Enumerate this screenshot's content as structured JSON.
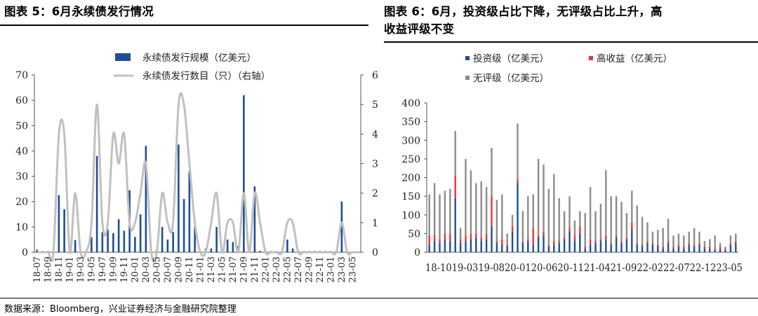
{
  "left_title": "图表 5：6月永续债发行情况",
  "right_title_line1": "图表 6：6月，投资级占比下降，无评级占比上升，高",
  "right_title_line2": "收益评级不变",
  "source": "数据来源：Bloomberg，兴业证券经济与金融研究院整理",
  "colors": {
    "blue": "#1f4e96",
    "red": "#e8343a",
    "gray": "#8c8c8c",
    "line_gray": "#c0c0c0"
  },
  "chart_data": [
    {
      "type": "bar+line",
      "legend": [
        "永续债发行规模（亿美元）",
        "永续债发行数目（只）（右轴）"
      ],
      "legend_placement": "top-center",
      "ylim_left": [
        0,
        70
      ],
      "ylim_right": [
        0,
        6
      ],
      "yticks_left": [
        "0",
        "10",
        "20",
        "30",
        "40",
        "50",
        "60",
        "70"
      ],
      "yticks_right": [
        "0",
        "1",
        "2",
        "3",
        "4",
        "5",
        "6"
      ],
      "x_tick_labels": [
        "18-07",
        "18-09",
        "18-11",
        "19-01",
        "19-03",
        "19-05",
        "19-07",
        "19-09",
        "19-11",
        "20-01",
        "20-03",
        "20-05",
        "20-07",
        "20-09",
        "20-11",
        "21-01",
        "21-03",
        "21-05",
        "21-07",
        "21-09",
        "21-11",
        "22-01",
        "22-03",
        "22-05",
        "22-07",
        "22-09",
        "22-11",
        "23-01",
        "23-03",
        "23-05"
      ],
      "months": [
        "18-07",
        "18-08",
        "18-09",
        "18-10",
        "18-11",
        "18-12",
        "19-01",
        "19-02",
        "19-03",
        "19-04",
        "19-05",
        "19-06",
        "19-07",
        "19-08",
        "19-09",
        "19-10",
        "19-11",
        "19-12",
        "20-01",
        "20-02",
        "20-03",
        "20-04",
        "20-05",
        "20-06",
        "20-07",
        "20-08",
        "20-09",
        "20-10",
        "20-11",
        "20-12",
        "21-01",
        "21-02",
        "21-03",
        "21-04",
        "21-05",
        "21-06",
        "21-07",
        "21-08",
        "21-09",
        "21-10",
        "21-11",
        "21-12",
        "22-01",
        "22-02",
        "22-03",
        "22-04",
        "22-05",
        "22-06",
        "22-07",
        "22-08",
        "22-09",
        "22-10",
        "22-11",
        "22-12",
        "23-01",
        "23-02",
        "23-03",
        "23-04",
        "23-05",
        "23-06"
      ],
      "series": [
        {
          "name": "永续债发行规模（亿美元）",
          "axis": "left",
          "values": [
            1,
            0.5,
            0.5,
            0.5,
            22.5,
            17,
            0.5,
            4.8,
            0.3,
            0.5,
            6,
            38,
            8,
            9,
            7.5,
            13,
            8.5,
            24.5,
            6,
            15,
            42,
            0.5,
            1,
            10,
            5,
            8,
            42.5,
            21,
            32,
            10,
            0.5,
            1.5,
            1.5,
            10,
            0.5,
            5,
            4,
            2.5,
            62,
            0.5,
            26,
            0.5,
            0.5,
            0.5,
            0.5,
            0.5,
            5,
            1.5,
            0.5,
            0.5,
            0.5,
            0.5,
            0.5,
            0.5,
            0.5,
            0.5,
            20,
            0.5,
            0,
            0
          ]
        },
        {
          "name": "永续债发行数目（只）（右轴）",
          "axis": "right",
          "values": [
            0,
            0,
            0,
            0,
            4,
            4,
            0,
            2,
            0,
            0,
            1,
            5,
            1,
            1,
            4,
            3,
            4,
            1,
            1,
            2,
            3,
            0,
            0,
            2,
            1,
            1,
            5,
            5,
            3,
            1,
            0,
            0,
            1,
            2,
            0,
            1,
            1,
            0,
            2,
            0,
            2,
            1,
            0,
            0,
            0,
            0,
            1,
            1,
            0,
            0,
            0,
            0,
            0,
            0,
            0,
            0,
            1,
            0,
            0,
            0
          ]
        }
      ]
    },
    {
      "type": "stacked-bar",
      "legend": [
        "投资级（亿美元）",
        "高收益（亿美元）",
        "无评级（亿美元）"
      ],
      "legend_placement": "top",
      "ylim": [
        0,
        400
      ],
      "yticks": [
        "0",
        "50",
        "100",
        "150",
        "200",
        "250",
        "300",
        "350",
        "400"
      ],
      "x_tick_label_text": "18-1019-0319-0820-0120-0620-1121-0421-0922-0222-0722-1223-05",
      "series": [
        {
          "name": "投资级（亿美元）",
          "values": [
            20,
            30,
            25,
            35,
            30,
            145,
            25,
            30,
            35,
            40,
            30,
            35,
            70,
            25,
            20,
            15,
            55,
            185,
            25,
            30,
            20,
            40,
            45,
            15,
            20,
            25,
            35,
            55,
            30,
            50,
            10,
            20,
            25,
            30,
            35,
            20,
            40,
            25,
            35,
            60,
            20,
            15,
            25,
            20,
            15,
            10,
            25,
            10,
            15,
            10,
            20,
            15,
            20,
            10,
            10,
            5,
            10,
            5,
            20,
            25
          ]
        },
        {
          "name": "高收益（亿美元）",
          "values": [
            25,
            15,
            10,
            15,
            20,
            60,
            10,
            15,
            15,
            10,
            10,
            15,
            80,
            5,
            15,
            5,
            15,
            10,
            5,
            5,
            45,
            5,
            10,
            5,
            10,
            5,
            5,
            10,
            15,
            20,
            5,
            15,
            5,
            5,
            10,
            5,
            5,
            5,
            5,
            20,
            5,
            5,
            5,
            5,
            5,
            5,
            5,
            5,
            5,
            5,
            5,
            5,
            5,
            5,
            5,
            5,
            5,
            5,
            5,
            5
          ]
        },
        {
          "name": "无评级（亿美元）",
          "values": [
            110,
            140,
            120,
            115,
            120,
            120,
            30,
            205,
            170,
            135,
            150,
            125,
            130,
            110,
            120,
            30,
            30,
            150,
            80,
            115,
            90,
            205,
            180,
            150,
            180,
            115,
            70,
            85,
            40,
            40,
            90,
            140,
            80,
            95,
            175,
            125,
            105,
            105,
            65,
            85,
            100,
            75,
            50,
            30,
            40,
            50,
            60,
            30,
            30,
            30,
            30,
            45,
            30,
            15,
            20,
            35,
            10,
            5,
            20,
            20
          ]
        }
      ]
    }
  ]
}
